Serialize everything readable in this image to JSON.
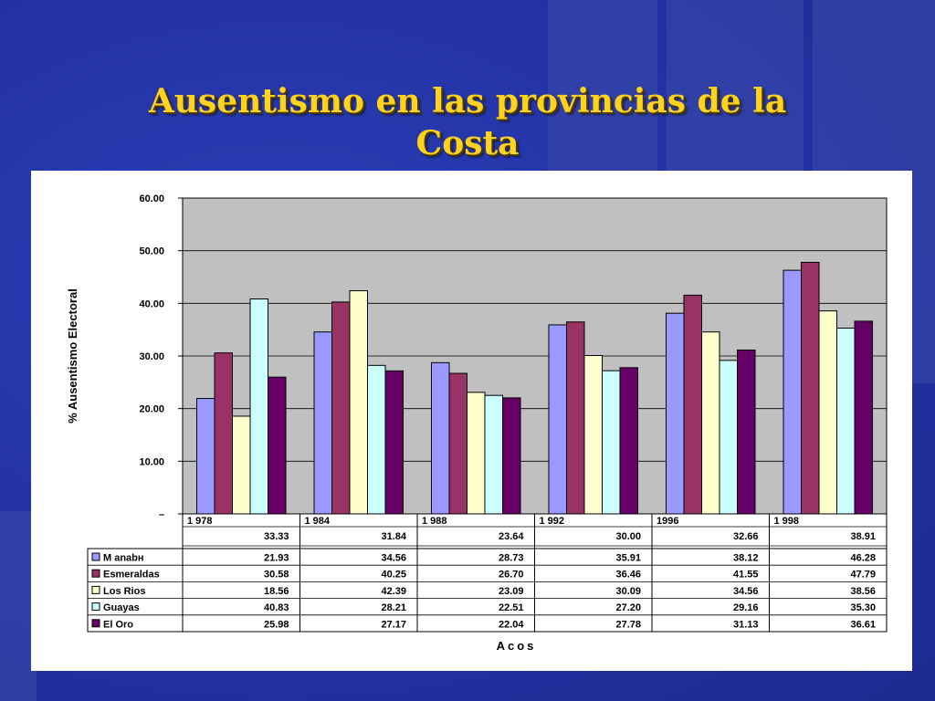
{
  "title": {
    "line1": "Ausentismo en las provincias de la",
    "line2": "Costa"
  },
  "chart_data": {
    "type": "bar",
    "title": "Ausentismo en las provincias de la Costa",
    "ylabel": "% Ausentismo Electoral",
    "xlabel": "Acos",
    "categories": [
      "1 978",
      "1 984",
      "1 988",
      "1 992",
      "1996",
      "1 998"
    ],
    "ylim": [
      0,
      60
    ],
    "yticks": [
      "–",
      "10.00",
      "20.00",
      "30.00",
      "40.00",
      "50.00",
      "60.00"
    ],
    "totals": [
      "33.33",
      "31.84",
      "23.64",
      "30.00",
      "32.66",
      "38.91"
    ],
    "grid": true,
    "legend": "table-rows",
    "series": [
      {
        "name": "M anabн",
        "color": "#9999ff",
        "values": [
          21.93,
          34.56,
          28.73,
          35.91,
          38.12,
          46.28
        ],
        "labels": [
          "21.93",
          "34.56",
          "28.73",
          "35.91",
          "38.12",
          "46.28"
        ]
      },
      {
        "name": "Esmeraldas",
        "color": "#993366",
        "values": [
          30.58,
          40.25,
          26.7,
          36.46,
          41.55,
          47.79
        ],
        "labels": [
          "30.58",
          "40.25",
          "26.70",
          "36.46",
          "41.55",
          "47.79"
        ]
      },
      {
        "name": "Los Rios",
        "color": "#ffffcc",
        "values": [
          18.56,
          42.39,
          23.09,
          30.09,
          34.56,
          38.56
        ],
        "labels": [
          "18.56",
          "42.39",
          "23.09",
          "30.09",
          "34.56",
          "38.56"
        ]
      },
      {
        "name": "Guayas",
        "color": "#ccffff",
        "values": [
          40.83,
          28.21,
          22.51,
          27.2,
          29.16,
          35.3
        ],
        "labels": [
          "40.83",
          "28.21",
          "22.51",
          "27.20",
          "29.16",
          "35.30"
        ]
      },
      {
        "name": "El Oro",
        "color": "#660066",
        "values": [
          25.98,
          27.17,
          22.04,
          27.78,
          31.13,
          36.61
        ],
        "labels": [
          "25.98",
          "27.17",
          "22.04",
          "27.78",
          "31.13",
          "36.61"
        ]
      }
    ]
  }
}
